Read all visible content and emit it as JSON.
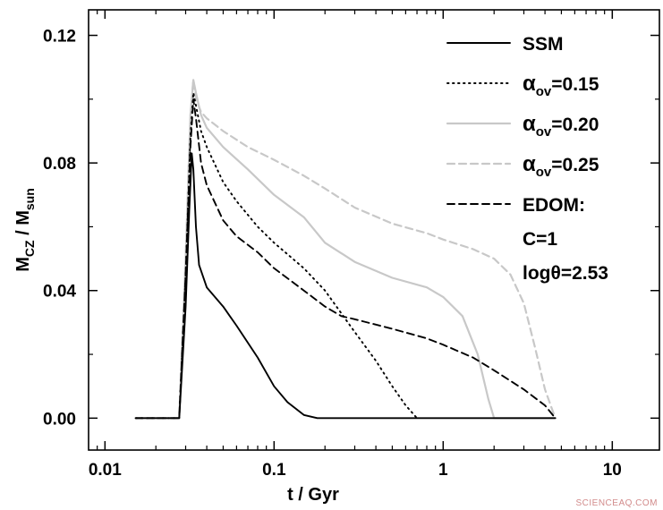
{
  "chart_data": {
    "type": "line",
    "xlabel": "t / Gyr",
    "ylabel": {
      "main": "M",
      "sub1": "CZ",
      "mid": " / M",
      "sub2": "sun"
    },
    "xscale": "log",
    "xlim": [
      0.008,
      19
    ],
    "ylim": [
      -0.01,
      0.128
    ],
    "x_ticks": [
      {
        "value": 0.01,
        "label": "0.01"
      },
      {
        "value": 0.1,
        "label": "0.1"
      },
      {
        "value": 1,
        "label": "1"
      },
      {
        "value": 10,
        "label": "10"
      }
    ],
    "y_ticks": [
      {
        "value": 0.0,
        "label": "0.00"
      },
      {
        "value": 0.04,
        "label": "0.04"
      },
      {
        "value": 0.08,
        "label": "0.08"
      },
      {
        "value": 0.12,
        "label": "0.12"
      }
    ],
    "grid": false,
    "legend_position": "top-right",
    "series": [
      {
        "name": "SSM",
        "color": "#000000",
        "dash": "solid",
        "x": [
          0.0152,
          0.0275,
          0.03,
          0.0315,
          0.0326,
          0.0333,
          0.0345,
          0.036,
          0.04,
          0.05,
          0.06,
          0.08,
          0.1,
          0.12,
          0.15,
          0.18,
          0.3,
          1,
          2,
          4.6
        ],
        "y": [
          0.0,
          0.0,
          0.035,
          0.065,
          0.083,
          0.078,
          0.06,
          0.048,
          0.041,
          0.035,
          0.029,
          0.019,
          0.01,
          0.005,
          0.001,
          0.0,
          0.0,
          0.0,
          0.0,
          0.0
        ]
      },
      {
        "name": "α_ov=0.15",
        "label_main": "α",
        "label_sub": "ov",
        "label_tail": "=0.15",
        "color": "#000000",
        "dash": "dotted",
        "x": [
          0.0152,
          0.0275,
          0.03,
          0.032,
          0.0333,
          0.0345,
          0.037,
          0.04,
          0.05,
          0.06,
          0.08,
          0.1,
          0.15,
          0.2,
          0.3,
          0.4,
          0.5,
          0.6,
          0.7
        ],
        "y": [
          0.0,
          0.0,
          0.045,
          0.088,
          0.102,
          0.098,
          0.09,
          0.085,
          0.074,
          0.068,
          0.06,
          0.055,
          0.047,
          0.04,
          0.027,
          0.018,
          0.01,
          0.004,
          0.0
        ]
      },
      {
        "name": "α_ov=0.20",
        "label_main": "α",
        "label_sub": "ov",
        "label_tail": "=0.20",
        "color": "#c8c8c8",
        "dash": "solid",
        "x": [
          0.0152,
          0.0275,
          0.03,
          0.032,
          0.0333,
          0.0345,
          0.037,
          0.04,
          0.05,
          0.07,
          0.1,
          0.15,
          0.2,
          0.3,
          0.5,
          0.8,
          1.0,
          1.3,
          1.6,
          1.85,
          2.0,
          3.0,
          4.6
        ],
        "y": [
          0.0,
          0.0,
          0.05,
          0.095,
          0.106,
          0.102,
          0.095,
          0.091,
          0.085,
          0.078,
          0.07,
          0.063,
          0.055,
          0.049,
          0.044,
          0.041,
          0.038,
          0.032,
          0.02,
          0.006,
          0.0,
          0.0,
          0.0
        ]
      },
      {
        "name": "α_ov=0.25",
        "label_main": "α",
        "label_sub": "ov",
        "label_tail": "=0.25",
        "color": "#c8c8c8",
        "dash": "dashed",
        "x": [
          0.0152,
          0.0275,
          0.03,
          0.032,
          0.0333,
          0.0345,
          0.037,
          0.04,
          0.05,
          0.07,
          0.1,
          0.15,
          0.2,
          0.3,
          0.5,
          0.8,
          1.0,
          1.5,
          2.0,
          2.5,
          3.0,
          3.5,
          4.0,
          4.6
        ],
        "y": [
          0.0,
          0.0,
          0.05,
          0.095,
          0.106,
          0.1,
          0.096,
          0.094,
          0.09,
          0.085,
          0.081,
          0.076,
          0.072,
          0.066,
          0.061,
          0.058,
          0.056,
          0.053,
          0.05,
          0.045,
          0.036,
          0.022,
          0.009,
          0.0
        ]
      },
      {
        "name": "EDOM: C=1 logθ=2.53",
        "label_lines": [
          "EDOM:",
          "C=1",
          "logθ=2.53"
        ],
        "color": "#000000",
        "dash": "dashed",
        "x": [
          0.0152,
          0.0275,
          0.03,
          0.032,
          0.0333,
          0.0345,
          0.037,
          0.04,
          0.05,
          0.06,
          0.08,
          0.1,
          0.15,
          0.2,
          0.25,
          0.3,
          0.5,
          0.8,
          1.0,
          1.5,
          2.0,
          3.0,
          4.0,
          4.6
        ],
        "y": [
          0.0,
          0.0,
          0.045,
          0.085,
          0.1,
          0.094,
          0.08,
          0.073,
          0.062,
          0.057,
          0.052,
          0.047,
          0.04,
          0.035,
          0.032,
          0.031,
          0.028,
          0.025,
          0.023,
          0.019,
          0.015,
          0.009,
          0.004,
          0.0
        ]
      }
    ]
  },
  "watermark": "SCIENCEAQ.COM"
}
